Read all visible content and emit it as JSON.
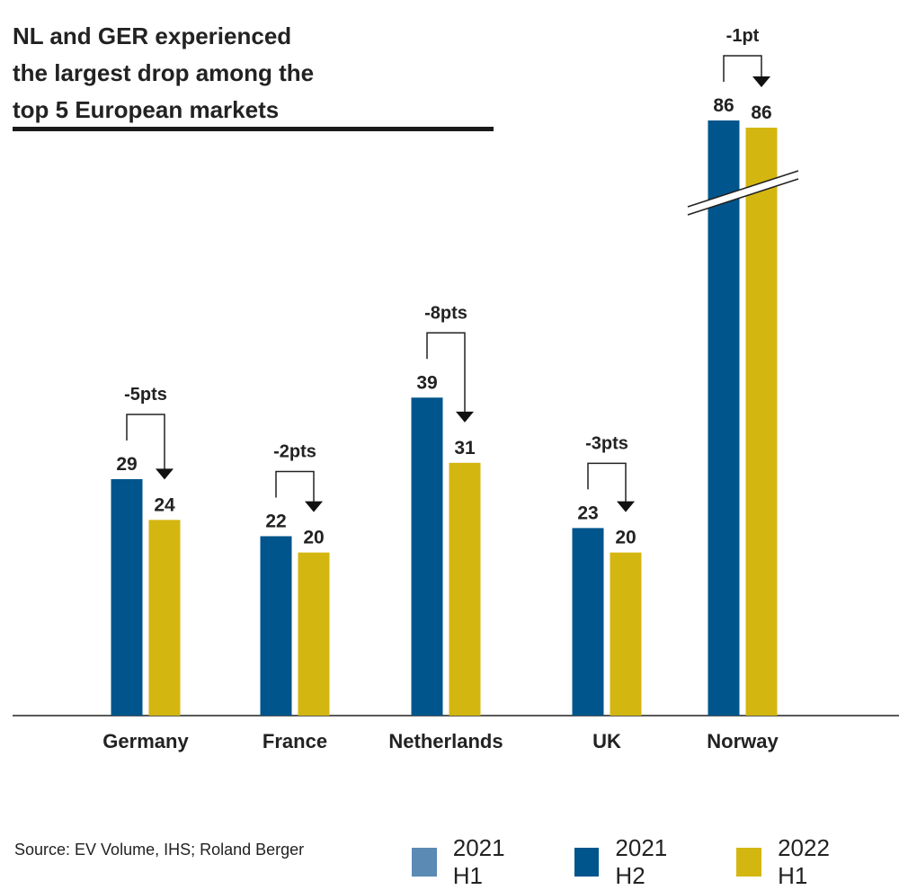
{
  "chart_data": {
    "type": "bar",
    "title": "NL and GER experienced the largest drop among the top 5 European markets",
    "title_lines": [
      "NL and GER experienced",
      "the largest drop among the",
      "top 5 European markets"
    ],
    "categories": [
      "Germany",
      "France",
      "Netherlands",
      "UK",
      "Norway"
    ],
    "series": [
      {
        "name": "2021 H1",
        "color": "#5b8ab5",
        "values": [
          null,
          null,
          null,
          null,
          null
        ]
      },
      {
        "name": "2021 H2",
        "color": "#00558c",
        "values": [
          29,
          22,
          39,
          23,
          86
        ]
      },
      {
        "name": "2022 H1",
        "color": "#d4b611",
        "values": [
          24,
          20,
          31,
          20,
          86
        ]
      }
    ],
    "annotations": [
      "-5pts",
      "-2pts",
      "-8pts",
      "-3pts",
      "-1pt"
    ],
    "axis_break": "Norway",
    "legend_position": "bottom-right",
    "grid": false,
    "source": "Source: EV Volume, IHS; Roland Berger"
  }
}
